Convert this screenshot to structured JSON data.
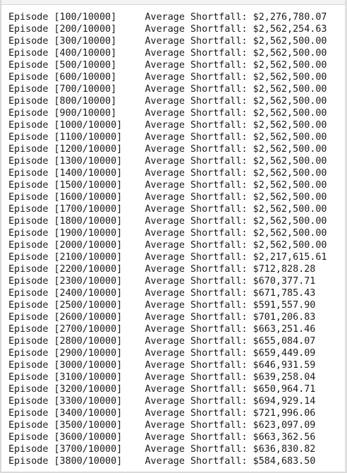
{
  "log": {
    "lines": [
      "Episode [100/10000]     Average Shortfall: $2,276,780.07",
      "Episode [200/10000]     Average Shortfall: $2,562,254.63",
      "Episode [300/10000]     Average Shortfall: $2,562,500.00",
      "Episode [400/10000]     Average Shortfall: $2,562,500.00",
      "Episode [500/10000]     Average Shortfall: $2,562,500.00",
      "Episode [600/10000]     Average Shortfall: $2,562,500.00",
      "Episode [700/10000]     Average Shortfall: $2,562,500.00",
      "Episode [800/10000]     Average Shortfall: $2,562,500.00",
      "Episode [900/10000]     Average Shortfall: $2,562,500.00",
      "Episode [1000/10000]    Average Shortfall: $2,562,500.00",
      "Episode [1100/10000]    Average Shortfall: $2,562,500.00",
      "Episode [1200/10000]    Average Shortfall: $2,562,500.00",
      "Episode [1300/10000]    Average Shortfall: $2,562,500.00",
      "Episode [1400/10000]    Average Shortfall: $2,562,500.00",
      "Episode [1500/10000]    Average Shortfall: $2,562,500.00",
      "Episode [1600/10000]    Average Shortfall: $2,562,500.00",
      "Episode [1700/10000]    Average Shortfall: $2,562,500.00",
      "Episode [1800/10000]    Average Shortfall: $2,562,500.00",
      "Episode [1900/10000]    Average Shortfall: $2,562,500.00",
      "Episode [2000/10000]    Average Shortfall: $2,562,500.00",
      "Episode [2100/10000]    Average Shortfall: $2,217,615.61",
      "Episode [2200/10000]    Average Shortfall: $712,828.28",
      "Episode [2300/10000]    Average Shortfall: $670,377.71",
      "Episode [2400/10000]    Average Shortfall: $671,785.43",
      "Episode [2500/10000]    Average Shortfall: $591,557.90",
      "Episode [2600/10000]    Average Shortfall: $701,206.83",
      "Episode [2700/10000]    Average Shortfall: $663,251.46",
      "Episode [2800/10000]    Average Shortfall: $655,084.07",
      "Episode [2900/10000]    Average Shortfall: $659,449.09",
      "Episode [3000/10000]    Average Shortfall: $646,931.59",
      "Episode [3100/10000]    Average Shortfall: $639,258.04",
      "Episode [3200/10000]    Average Shortfall: $650,964.71",
      "Episode [3300/10000]    Average Shortfall: $694,929.14",
      "Episode [3400/10000]    Average Shortfall: $721,996.06",
      "Episode [3500/10000]    Average Shortfall: $623,097.09",
      "Episode [3600/10000]    Average Shortfall: $663,362.56",
      "Episode [3700/10000]    Average Shortfall: $636,830.82",
      "Episode [3800/10000]    Average Shortfall: $584,683.50"
    ]
  }
}
